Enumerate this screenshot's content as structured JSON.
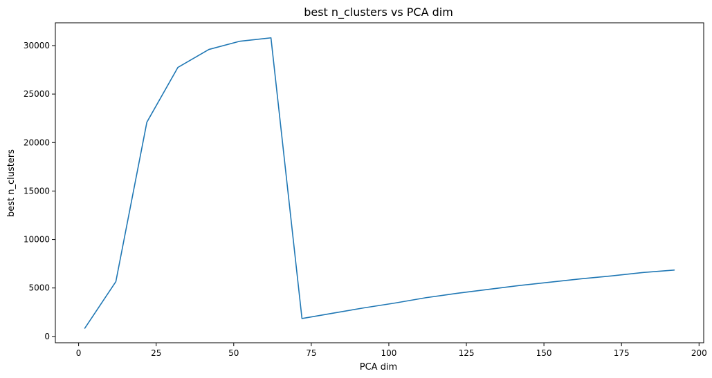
{
  "chart_data": {
    "type": "line",
    "title": "best n_clusters vs PCA dim",
    "xlabel": "PCA dim",
    "ylabel": "best n_clusters",
    "xlim": [
      -7.5,
      201.5
    ],
    "ylim": [
      -650,
      32350
    ],
    "x_ticks": [
      0,
      25,
      50,
      75,
      100,
      125,
      150,
      175,
      200
    ],
    "y_ticks": [
      0,
      5000,
      10000,
      15000,
      20000,
      25000,
      30000
    ],
    "grid": false,
    "legend": "none",
    "series": [
      {
        "color": "#1f77b4",
        "x": [
          2,
          12,
          22,
          32,
          42,
          52,
          62,
          72,
          82,
          92,
          102,
          112,
          122,
          132,
          142,
          152,
          162,
          172,
          182,
          192
        ],
        "y": [
          850,
          5650,
          22100,
          27750,
          29600,
          30450,
          30800,
          1850,
          2400,
          2950,
          3450,
          4000,
          4450,
          4850,
          5250,
          5600,
          5950,
          6250,
          6600,
          6850
        ]
      }
    ]
  }
}
